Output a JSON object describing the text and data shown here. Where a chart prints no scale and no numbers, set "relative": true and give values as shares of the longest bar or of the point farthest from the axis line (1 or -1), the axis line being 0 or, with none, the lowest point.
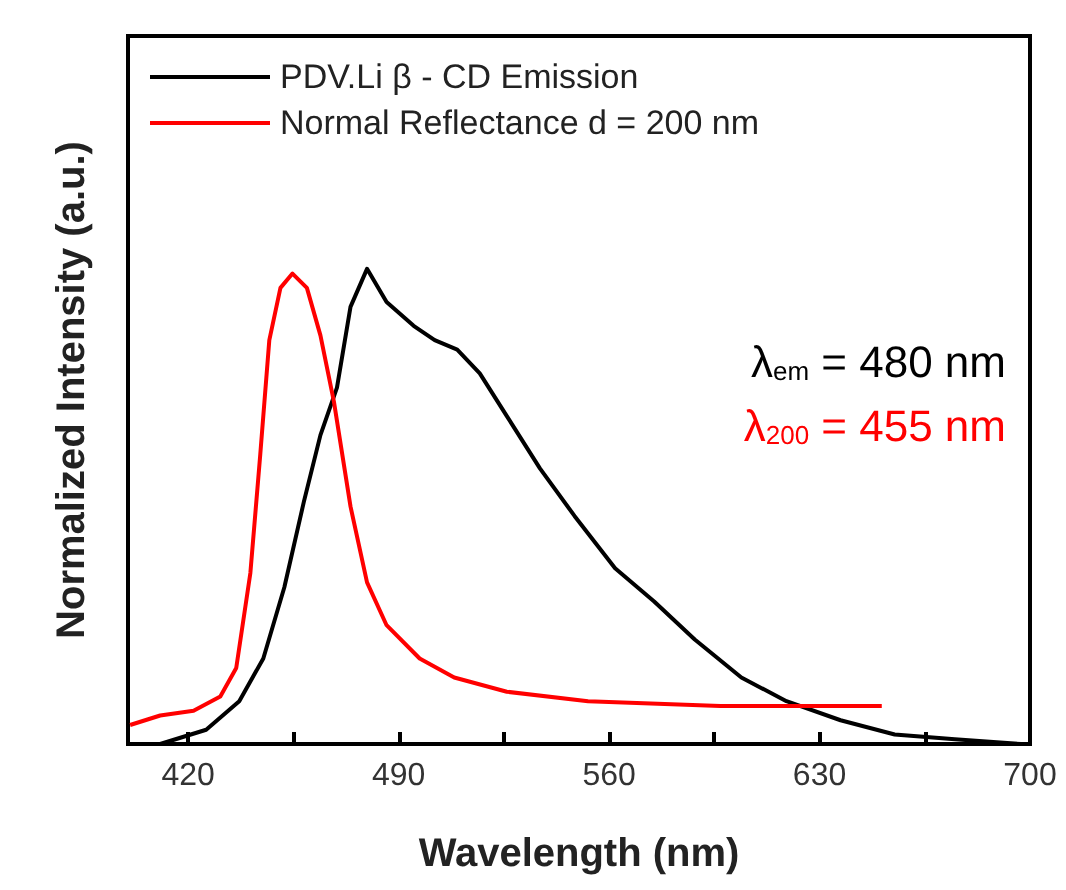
{
  "chart_data": {
    "type": "line",
    "xlabel": "Wavelength (nm)",
    "ylabel": "Normalized Intensity (a.u.)",
    "relative": true,
    "xlim": [
      400,
      700
    ],
    "xticks": [
      420,
      {
        "value": 455,
        "label": null
      },
      490,
      {
        "value": 525,
        "label": null
      },
      560,
      {
        "value": 595,
        "label": null
      },
      630,
      {
        "value": 665,
        "label": null
      },
      700
    ],
    "series": [
      {
        "name": "PDV.Li β - CD Emission",
        "color": "#000000",
        "x": [
          400.7,
          410.7,
          426,
          437,
          445,
          452,
          458.5,
          464,
          469.5,
          474,
          479.5,
          486,
          495,
          502,
          509.5,
          517,
          526,
          537,
          548.5,
          562,
          575,
          588.5,
          604,
          619,
          637,
          655,
          675,
          697
        ],
        "values": [
          0,
          0,
          0.03,
          0.09,
          0.18,
          0.33,
          0.51,
          0.65,
          0.75,
          0.92,
          1,
          0.93,
          0.88,
          0.85,
          0.83,
          0.78,
          0.69,
          0.58,
          0.48,
          0.37,
          0.3,
          0.22,
          0.14,
          0.09,
          0.05,
          0.02,
          0.01,
          0
        ]
      },
      {
        "name": "Normal Reflectance d = 200 nm",
        "color": "#ff0000",
        "x": [
          400.7,
          410.7,
          421.8,
          430.7,
          436,
          440.7,
          444,
          447,
          450.7,
          454.7,
          459.5,
          464,
          468.5,
          474,
          479.5,
          486,
          497,
          508.5,
          526,
          553,
          597,
          650.7
        ],
        "values": [
          0.04,
          0.06,
          0.07,
          0.1,
          0.16,
          0.36,
          0.61,
          0.85,
          0.96,
          0.99,
          0.96,
          0.86,
          0.72,
          0.5,
          0.34,
          0.25,
          0.18,
          0.14,
          0.11,
          0.09,
          0.08,
          0.08
        ]
      }
    ],
    "annotations": [
      "λ$_{em}$ = 480 nm",
      "λ$_{200}$ = 455 nm"
    ],
    "legend": "top left",
    "grid": false,
    "marker": "none",
    "line_style": "solid"
  }
}
